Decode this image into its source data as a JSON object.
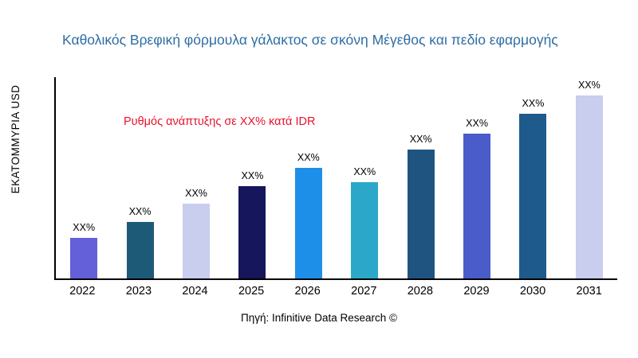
{
  "header": {
    "title": "Καθολικός Βρεφική φόρμουλα γάλακτος σε σκόνη Μέγεθος και πεδίο εφαρμογής"
  },
  "annotations": {
    "growth_note": "Ρυθμός ανάπτυξης σε XX% κατά IDR",
    "growth_note_color": "#e8112d"
  },
  "footer": {
    "source": "Πηγή: Infinitive Data Research ©"
  },
  "chart_data": {
    "type": "bar",
    "title": "Καθολικός Βρεφική φόρμουλα γάλακτος σε σκόνη Μέγεθος και πεδίο εφαρμογής",
    "xlabel": "",
    "ylabel": "ΕΚΑΤΟΜΜΥΡΙΑ USD",
    "grid": false,
    "legend": "none",
    "categories": [
      "2022",
      "2023",
      "2024",
      "2025",
      "2026",
      "2027",
      "2028",
      "2029",
      "2030",
      "2031"
    ],
    "value_labels": [
      "XX%",
      "XX%",
      "XX%",
      "XX%",
      "XX%",
      "XX%",
      "XX%",
      "XX%",
      "XX%",
      "XX%"
    ],
    "relative_heights_pct": [
      20,
      28,
      37,
      46,
      55,
      48,
      64,
      72,
      82,
      91
    ],
    "bar_colors": [
      "#6360d9",
      "#1d5a78",
      "#c9cdee",
      "#16165c",
      "#1e8fe8",
      "#2bა8c9",
      "#1f5480",
      "#4a5cc9",
      "#1e5a8c",
      "#c9cdee"
    ],
    "bar_colors_fixed": [
      "#6360d9",
      "#1d5a78",
      "#c9cdee",
      "#16165c",
      "#1e8fe8",
      "#2ba8c9",
      "#1f5480",
      "#4a5cc9",
      "#1e5a8c",
      "#c9cdee"
    ],
    "ylim": [
      0,
      100
    ]
  }
}
